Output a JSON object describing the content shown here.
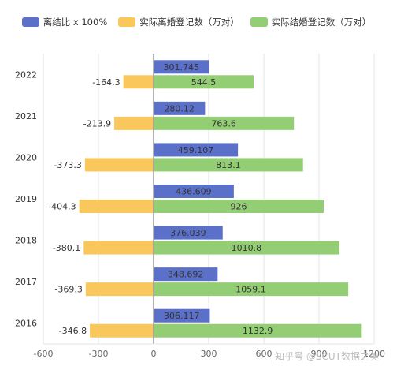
{
  "legend": {
    "ratio": "离结比 x 100%",
    "divorce": "实际离婚登记数（万对）",
    "marriage": "实际结婚登记数（万对）"
  },
  "watermark": "知乎号 @SCUT数据之美",
  "colors": {
    "ratio": "#5b70c8",
    "divorce": "#f9c75b",
    "marriage": "#93cd74",
    "axis": "#9a9a9a",
    "grid": "#e6e6e6",
    "text": "#333333"
  },
  "chart_data": {
    "type": "bar",
    "orientation": "horizontal",
    "categories": [
      "2016",
      "2017",
      "2018",
      "2019",
      "2020",
      "2021",
      "2022"
    ],
    "series": [
      {
        "name": "离结比 x 100%",
        "key": "ratio",
        "values": [
          306.117,
          348.692,
          376.039,
          436.609,
          459.107,
          280.12,
          301.745
        ]
      },
      {
        "name": "实际离婚登记数（万对）",
        "key": "divorce",
        "values": [
          -346.8,
          -369.3,
          -380.1,
          -404.3,
          -373.3,
          -213.9,
          -164.3
        ]
      },
      {
        "name": "实际结婚登记数（万对）",
        "key": "marriage",
        "values": [
          1132.9,
          1059.1,
          1010.8,
          926,
          813.1,
          763.6,
          544.5
        ]
      }
    ],
    "xticks": [
      -600,
      -300,
      0,
      300,
      600,
      900,
      1200
    ],
    "xlim": [
      -600,
      1200
    ],
    "legend_position": "top-center",
    "grid": true
  }
}
